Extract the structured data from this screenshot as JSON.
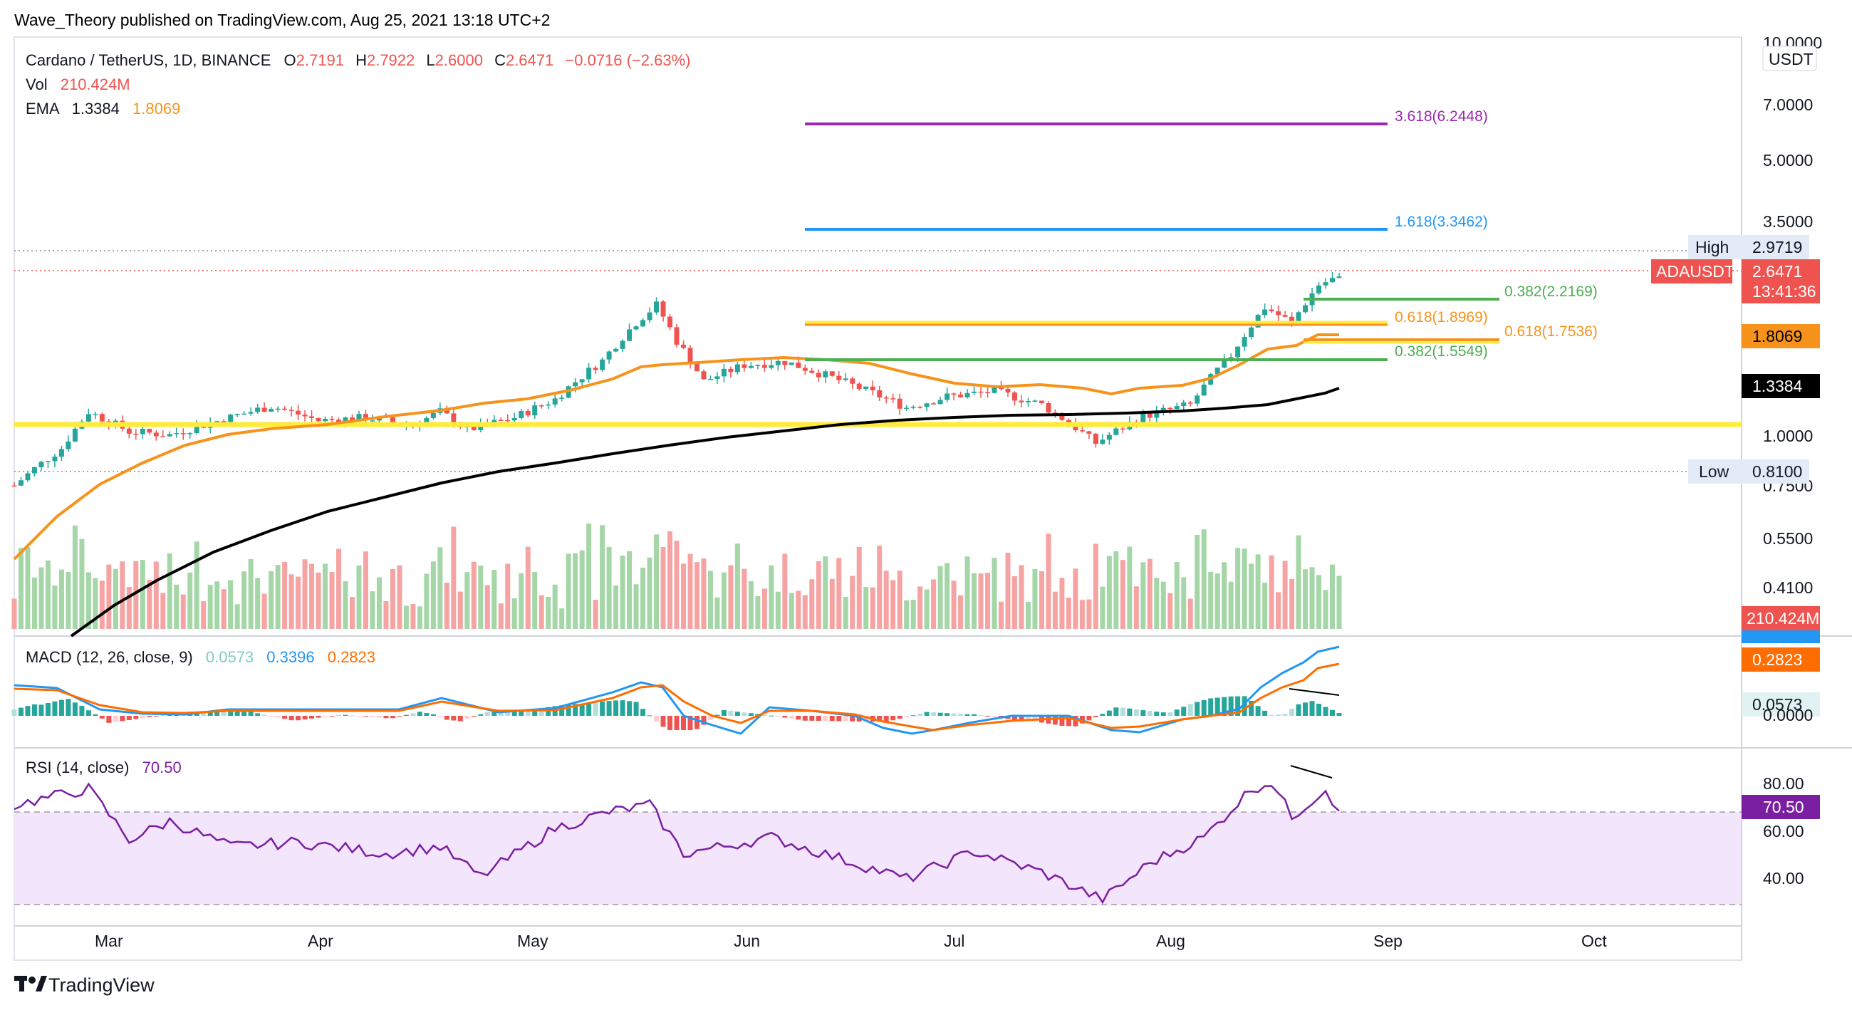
{
  "header": {
    "published": "Wave_Theory published on TradingView.com, Aug 25, 2021 13:18 UTC+2"
  },
  "legend": {
    "symbol": "Cardano / TetherUS, 1D, BINANCE",
    "o_label": "O",
    "o_value": "2.7191",
    "h_label": "H",
    "h_value": "2.7922",
    "l_label": "L",
    "l_value": "2.6000",
    "c_label": "C",
    "c_value": "2.6471",
    "change": "−0.0716 (−2.63%)",
    "vol_label": "Vol",
    "vol_value": "210.424M",
    "ema_label": "EMA",
    "ema1_value": "1.3384",
    "ema2_value": "1.8069"
  },
  "macd_legend": {
    "label": "MACD (12, 26, close, 9)",
    "hist": "0.0573",
    "macd": "0.3396",
    "signal": "0.2823"
  },
  "rsi_legend": {
    "label": "RSI (14, close)",
    "value": "70.50"
  },
  "price_axis": {
    "unit": "USDT",
    "ticks": [
      "10.0000",
      "7.0000",
      "5.0000",
      "3.5000",
      "1.8069",
      "1.0000",
      "0.7500",
      "0.5500",
      "0.4100"
    ],
    "high_label": "High",
    "high_value": "2.9719",
    "low_label": "Low",
    "low_value": "0.8100",
    "symbol_tag": "ADAUSDT",
    "last_price": "2.6471",
    "countdown": "13:41:36",
    "ema_long_tag": "1.8069",
    "ema_short_tag": "1.3384",
    "volume_tag": "210.424M"
  },
  "macd_axis": {
    "ticks": [
      "0.3396",
      "0.2823",
      "0.0573",
      "0.0000"
    ]
  },
  "rsi_axis": {
    "ticks": [
      "80.00",
      "60.00",
      "40.00"
    ],
    "value_tag": "70.50"
  },
  "time_axis": {
    "labels": [
      "Mar",
      "Apr",
      "May",
      "Jun",
      "Jul",
      "Aug",
      "Sep",
      "Oct"
    ]
  },
  "fib_labels": {
    "f3618": "3.618(6.2448)",
    "f1618": "1.618(3.3462)",
    "f0382a": "0.382(2.2169)",
    "f0618a": "0.618(1.8969)",
    "f0618b": "0.618(1.7536)",
    "f0382b": "0.382(1.5549)"
  },
  "footer": {
    "brand": "TradingView"
  },
  "colors": {
    "up": "#26a69a",
    "down": "#ef5350",
    "ema_long": "#000000",
    "ema_short": "#f7931a",
    "support": "#ffeb3b",
    "fib_3618": "#9c27b0",
    "fib_1618": "#2196f3",
    "fib_green": "#4caf50",
    "macd": "#2196f3",
    "signal": "#ff6d00",
    "rsi": "#7b1fa2",
    "rsi_band": "#f3e5fb"
  },
  "chart_data": [
    {
      "type": "candlestick",
      "title": "Cardano / TetherUS, 1D, BINANCE",
      "scale": "log",
      "x_range": [
        "2021-02-10",
        "2021-10-20"
      ],
      "ylim": [
        0.36,
        10.0
      ],
      "ohlc_last": {
        "open": 2.7191,
        "high": 2.7922,
        "low": 2.6,
        "close": 2.6471
      },
      "close_series": {
        "x": [
          "2021-02-10",
          "2021-02-17",
          "2021-02-21",
          "2021-02-27",
          "2021-03-05",
          "2021-03-13",
          "2021-03-20",
          "2021-03-27",
          "2021-04-03",
          "2021-04-10",
          "2021-04-14",
          "2021-04-18",
          "2021-04-25",
          "2021-05-01",
          "2021-05-08",
          "2021-05-13",
          "2021-05-16",
          "2021-05-19",
          "2021-05-23",
          "2021-05-29",
          "2021-06-04",
          "2021-06-12",
          "2021-06-22",
          "2021-06-28",
          "2021-07-05",
          "2021-07-12",
          "2021-07-20",
          "2021-07-27",
          "2021-08-03",
          "2021-08-09",
          "2021-08-14",
          "2021-08-18",
          "2021-08-22",
          "2021-08-25"
        ],
        "values": [
          0.83,
          1.02,
          1.25,
          1.12,
          1.1,
          1.2,
          1.29,
          1.19,
          1.21,
          1.16,
          1.25,
          1.13,
          1.21,
          1.34,
          1.66,
          2.05,
          2.26,
          1.85,
          1.48,
          1.62,
          1.65,
          1.49,
          1.28,
          1.36,
          1.4,
          1.3,
          1.05,
          1.22,
          1.3,
          1.71,
          2.23,
          2.05,
          2.53,
          2.6471
        ]
      },
      "high": {
        "label": "High",
        "value": 2.9719
      },
      "low": {
        "label": "Low",
        "value": 0.81
      },
      "ema_long": {
        "name": "EMA",
        "last": 1.3384
      },
      "ema_short": {
        "name": "EMA",
        "last": 1.8069
      },
      "support_line": 1.09,
      "fib_levels": [
        {
          "label": "3.618(6.2448)",
          "value": 6.2448
        },
        {
          "label": "1.618(3.3462)",
          "value": 3.3462
        },
        {
          "label": "0.382(2.2169)",
          "value": 2.2169
        },
        {
          "label": "0.618(1.8969)",
          "value": 1.8969
        },
        {
          "label": "0.618(1.7536)",
          "value": 1.7536
        },
        {
          "label": "0.382(1.5549)",
          "value": 1.5549
        }
      ],
      "volume": {
        "name": "Vol",
        "last": "210.424M"
      }
    },
    {
      "type": "line",
      "title": "MACD (12, 26, close, 9)",
      "series": [
        {
          "name": "MACD",
          "last": 0.3396
        },
        {
          "name": "Signal",
          "last": 0.2823
        },
        {
          "name": "Histogram",
          "last": 0.0573
        }
      ]
    },
    {
      "type": "line",
      "title": "RSI (14, close)",
      "ylim": [
        30,
        90
      ],
      "bands": [
        30,
        70
      ],
      "series": [
        {
          "name": "RSI",
          "x": [
            "2021-02-10",
            "2021-02-21",
            "2021-02-27",
            "2021-03-05",
            "2021-03-14",
            "2021-03-24",
            "2021-04-06",
            "2021-04-14",
            "2021-04-20",
            "2021-05-01",
            "2021-05-09",
            "2021-05-15",
            "2021-05-20",
            "2021-06-02",
            "2021-06-12",
            "2021-06-22",
            "2021-07-02",
            "2021-07-12",
            "2021-07-21",
            "2021-07-28",
            "2021-08-05",
            "2021-08-12",
            "2021-08-15",
            "2021-08-18",
            "2021-08-23",
            "2021-08-25"
          ],
          "values": [
            73,
            80,
            58,
            66,
            55,
            57,
            52,
            55,
            42,
            63,
            70,
            73,
            52,
            59,
            50,
            41,
            53,
            44,
            32,
            48,
            59,
            80,
            83,
            68,
            80,
            70.5
          ]
        }
      ]
    }
  ]
}
